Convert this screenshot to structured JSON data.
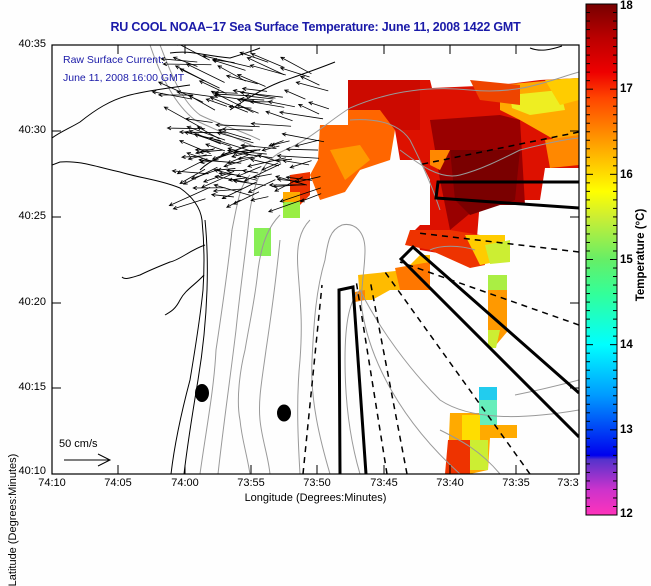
{
  "title": "RU COOL  NOAA–17  Sea Surface Temperature:  June 11, 2008 1422 GMT",
  "inset": {
    "line1": "Raw Surface Current:",
    "line2": "June 11, 2008 16:00 GMT"
  },
  "scale_arrow": {
    "label": "50 cm/s",
    "speed_cms": 50
  },
  "axes": {
    "x_title": "Longitude (Degrees:Minutes)",
    "y_title": "Latitude (Degrees:Minutes)",
    "x_ticks": [
      "74:10",
      "74:05",
      "74:00",
      "73:55",
      "73:50",
      "73:45",
      "73:40",
      "73:35",
      "73:3"
    ],
    "y_ticks": [
      "40:35",
      "40:30",
      "40:25",
      "40:20",
      "40:15",
      "40:10"
    ],
    "x_range_deg": [
      -74.1667,
      -73.5
    ],
    "y_range_deg": [
      40.1667,
      40.5833
    ]
  },
  "colorbar": {
    "title": "Temperature (°C)",
    "min": 12,
    "max": 18,
    "tick_labels": [
      "18",
      "17",
      "16",
      "15",
      "14",
      "13",
      "12"
    ],
    "stops": [
      {
        "t": 12.0,
        "color": "#ff33bb"
      },
      {
        "t": 12.3,
        "color": "#cc33cc"
      },
      {
        "t": 12.65,
        "color": "#5533cc"
      },
      {
        "t": 12.7,
        "color": "#0000ee"
      },
      {
        "t": 13.4,
        "color": "#0099ff"
      },
      {
        "t": 14.0,
        "color": "#00ffff"
      },
      {
        "t": 14.6,
        "color": "#33ff99"
      },
      {
        "t": 15.0,
        "color": "#66ee66"
      },
      {
        "t": 15.5,
        "color": "#ccee33"
      },
      {
        "t": 15.8,
        "color": "#ffff00"
      },
      {
        "t": 16.3,
        "color": "#ffaa00"
      },
      {
        "t": 16.9,
        "color": "#ff4400"
      },
      {
        "t": 17.2,
        "color": "#ee0000"
      },
      {
        "t": 17.6,
        "color": "#bb0000"
      },
      {
        "t": 18.0,
        "color": "#770000"
      }
    ]
  },
  "sst_patches": [
    {
      "lon": -73.633,
      "lat": 40.5,
      "t": 17.6
    },
    {
      "lon": -73.6,
      "lat": 40.47,
      "t": 17.9
    },
    {
      "lon": -73.58,
      "lat": 40.5,
      "t": 16.5
    },
    {
      "lon": -73.54,
      "lat": 40.52,
      "t": 16.0
    },
    {
      "lon": -73.52,
      "lat": 40.48,
      "t": 16.6
    },
    {
      "lon": -73.7,
      "lat": 40.53,
      "t": 17.3
    },
    {
      "lon": -73.75,
      "lat": 40.53,
      "t": 17.4
    },
    {
      "lon": -73.8,
      "lat": 40.52,
      "t": 17.2
    },
    {
      "lon": -73.83,
      "lat": 40.5,
      "t": 16.8
    },
    {
      "lon": -73.87,
      "lat": 40.48,
      "t": 16.4
    },
    {
      "lon": -73.9,
      "lat": 40.46,
      "t": 16.9
    },
    {
      "lon": -73.93,
      "lat": 40.44,
      "t": 15.2
    },
    {
      "lon": -73.68,
      "lat": 40.42,
      "t": 17.1
    },
    {
      "lon": -73.72,
      "lat": 40.37,
      "t": 17.0
    },
    {
      "lon": -73.75,
      "lat": 40.35,
      "t": 16.2
    },
    {
      "lon": -73.64,
      "lat": 40.39,
      "t": 17.8
    },
    {
      "lon": -73.55,
      "lat": 40.43,
      "t": 16.8
    },
    {
      "lon": -73.62,
      "lat": 40.33,
      "t": 16.7
    },
    {
      "lon": -73.63,
      "lat": 40.3,
      "t": 16.3
    },
    {
      "lon": -74.0,
      "lat": 40.39,
      "t": 15.3
    },
    {
      "lon": -73.65,
      "lat": 40.19,
      "t": 16.4
    },
    {
      "lon": -73.62,
      "lat": 40.21,
      "t": 15.2
    },
    {
      "lon": -73.61,
      "lat": 40.245,
      "t": 14.0
    }
  ],
  "markers": [
    {
      "name": "buoy-1",
      "lon": -73.983,
      "lat": 40.2333
    },
    {
      "name": "buoy-2",
      "lon": -73.9383,
      "lat": 40.2217
    }
  ]
}
